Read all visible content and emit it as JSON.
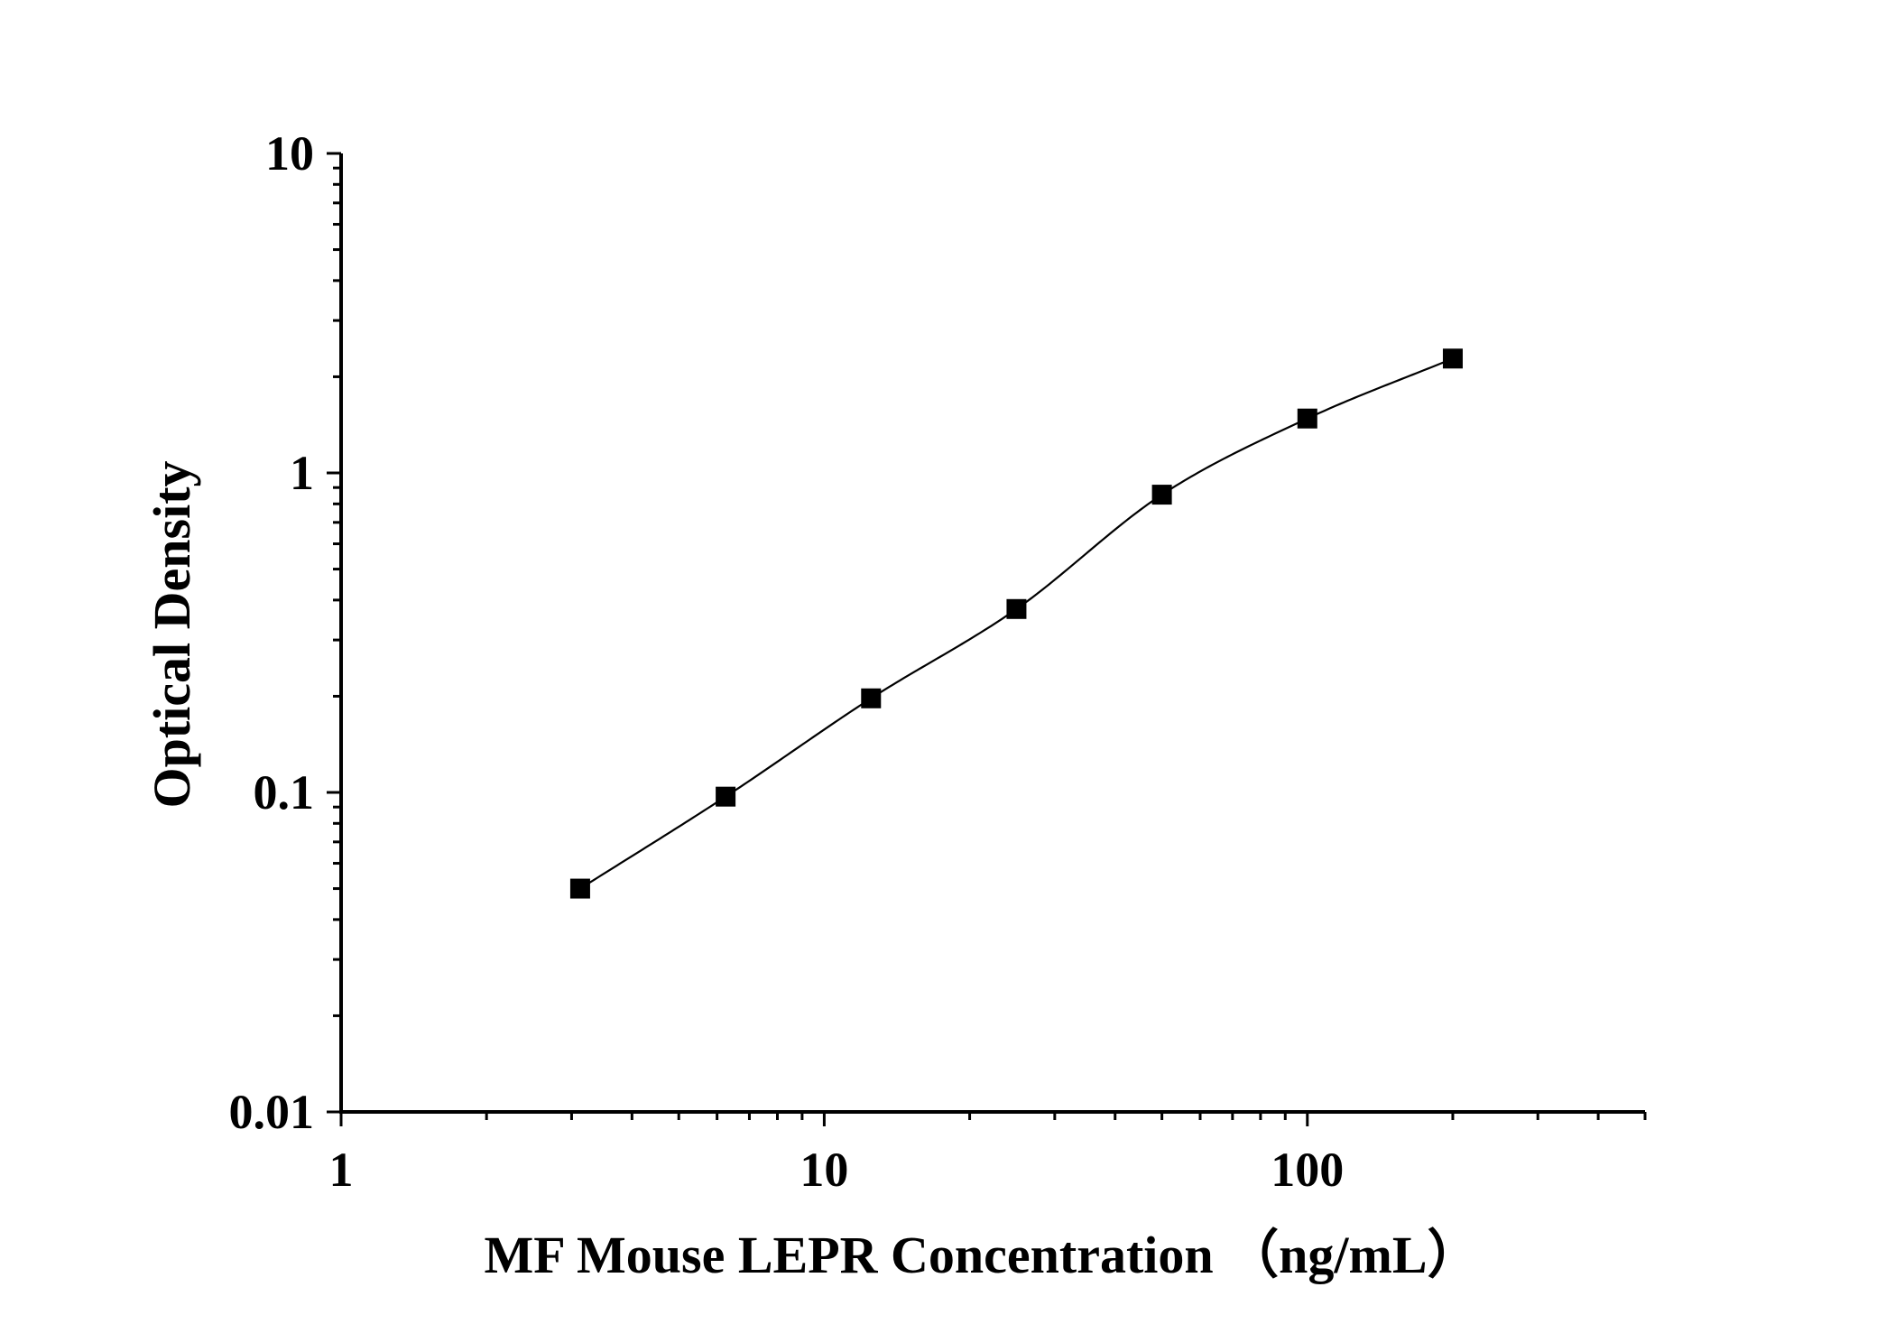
{
  "chart_data": {
    "type": "scatter",
    "title": "",
    "xlabel": "MF Mouse LEPR Concentration （ng/mL）",
    "ylabel": "Optical Density",
    "x_scale": "log",
    "y_scale": "log",
    "xlim": [
      1,
      500
    ],
    "ylim": [
      0.01,
      10
    ],
    "x_ticks": [
      {
        "value": 1,
        "label": "1"
      },
      {
        "value": 10,
        "label": "10"
      },
      {
        "value": 100,
        "label": "100"
      }
    ],
    "y_ticks": [
      {
        "value": 0.01,
        "label": "0.01"
      },
      {
        "value": 0.1,
        "label": "0.1"
      },
      {
        "value": 1,
        "label": "1"
      },
      {
        "value": 10,
        "label": "10"
      }
    ],
    "grid": false,
    "legend": "none",
    "series": [
      {
        "x": [
          3.125,
          6.25,
          12.5,
          25,
          50,
          100,
          200
        ],
        "y": [
          0.05,
          0.097,
          0.197,
          0.375,
          0.855,
          1.48,
          2.28
        ],
        "marker": "square",
        "fit": "four-parameter-logistic",
        "color": "#000000"
      }
    ]
  }
}
